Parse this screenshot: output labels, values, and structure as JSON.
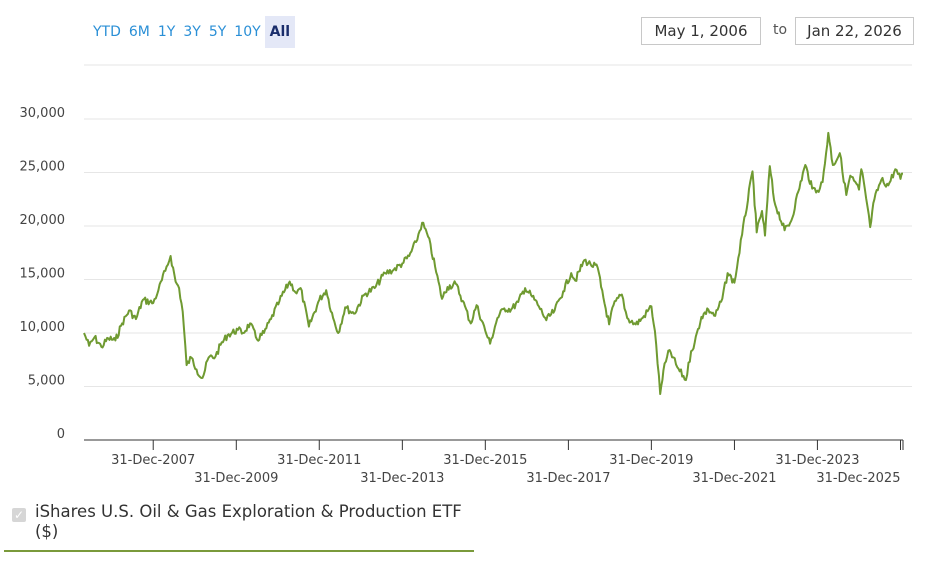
{
  "toolbar": {
    "ranges": [
      "YTD",
      "6M",
      "1Y",
      "3Y",
      "5Y",
      "10Y",
      "All"
    ],
    "active_range": "All",
    "from_date": "May 1, 2006",
    "to_label": "to",
    "to_date": "Jan 22, 2026"
  },
  "legend": {
    "label": "iShares U.S. Oil & Gas Exploration & Production ETF ($)",
    "checked": true
  },
  "colors": {
    "series": "#6f9a31",
    "grid": "#e6e6e6",
    "axis": "#333333",
    "range_text": "#2a8fd6",
    "range_active_bg": "#e4e8f7"
  },
  "chart_data": {
    "type": "line",
    "ylim": [
      0,
      30000
    ],
    "yticks": [
      0,
      5000,
      10000,
      15000,
      20000,
      25000,
      30000
    ],
    "ytick_labels": [
      "0",
      "5,000",
      "10,000",
      "15,000",
      "20,000",
      "25,000",
      "30,000"
    ],
    "xlim": [
      "2006-05-01",
      "2026-01-22"
    ],
    "xtick_labels": [
      "31-Dec-2007",
      "31-Dec-2009",
      "31-Dec-2011",
      "31-Dec-2013",
      "31-Dec-2015",
      "31-Dec-2017",
      "31-Dec-2019",
      "31-Dec-2021",
      "31-Dec-2023",
      "31-Dec-2025"
    ],
    "xtick_dates": [
      "2007-12-31",
      "2009-12-31",
      "2011-12-31",
      "2013-12-31",
      "2015-12-31",
      "2017-12-31",
      "2019-12-31",
      "2021-12-31",
      "2023-12-31",
      "2025-12-31"
    ],
    "series": [
      {
        "name": "iShares U.S. Oil & Gas Exploration & Production ETF ($)",
        "points": [
          [
            "2006-05-01",
            10000
          ],
          [
            "2006-06-15",
            8800
          ],
          [
            "2006-08-01",
            9600
          ],
          [
            "2006-10-01",
            8700
          ],
          [
            "2006-12-01",
            9500
          ],
          [
            "2007-02-01",
            9300
          ],
          [
            "2007-04-01",
            10900
          ],
          [
            "2007-06-01",
            12100
          ],
          [
            "2007-08-01",
            11300
          ],
          [
            "2007-10-01",
            13100
          ],
          [
            "2007-12-31",
            12800
          ],
          [
            "2008-02-15",
            14000
          ],
          [
            "2008-04-15",
            15800
          ],
          [
            "2008-06-01",
            17200
          ],
          [
            "2008-07-15",
            14800
          ],
          [
            "2008-08-15",
            14200
          ],
          [
            "2008-09-15",
            12000
          ],
          [
            "2008-10-20",
            7000
          ],
          [
            "2008-12-01",
            7700
          ],
          [
            "2009-01-15",
            6600
          ],
          [
            "2009-03-09",
            5800
          ],
          [
            "2009-05-01",
            7700
          ],
          [
            "2009-07-01",
            7800
          ],
          [
            "2009-08-15",
            8900
          ],
          [
            "2009-10-15",
            9800
          ],
          [
            "2010-01-15",
            10300
          ],
          [
            "2010-03-01",
            10000
          ],
          [
            "2010-05-01",
            10900
          ],
          [
            "2010-07-01",
            9400
          ],
          [
            "2010-09-01",
            10000
          ],
          [
            "2010-11-01",
            11300
          ],
          [
            "2011-01-15",
            13000
          ],
          [
            "2011-04-15",
            14800
          ],
          [
            "2011-06-15",
            13700
          ],
          [
            "2011-07-20",
            14200
          ],
          [
            "2011-10-01",
            10600
          ],
          [
            "2011-12-31",
            13100
          ],
          [
            "2012-03-01",
            14000
          ],
          [
            "2012-05-01",
            11400
          ],
          [
            "2012-06-15",
            10000
          ],
          [
            "2012-08-15",
            12400
          ],
          [
            "2012-11-01",
            11800
          ],
          [
            "2013-02-01",
            13600
          ],
          [
            "2013-05-01",
            14200
          ],
          [
            "2013-08-01",
            15600
          ],
          [
            "2013-10-15",
            15900
          ],
          [
            "2013-12-31",
            16500
          ],
          [
            "2014-03-01",
            17200
          ],
          [
            "2014-05-01",
            18500
          ],
          [
            "2014-06-23",
            20300
          ],
          [
            "2014-08-15",
            19000
          ],
          [
            "2014-10-15",
            16200
          ],
          [
            "2014-12-15",
            13200
          ],
          [
            "2015-02-01",
            14300
          ],
          [
            "2015-04-15",
            14600
          ],
          [
            "2015-06-15",
            13000
          ],
          [
            "2015-08-25",
            10900
          ],
          [
            "2015-10-15",
            12600
          ],
          [
            "2015-12-31",
            10200
          ],
          [
            "2016-02-11",
            9000
          ],
          [
            "2016-04-15",
            11400
          ],
          [
            "2016-06-15",
            12300
          ],
          [
            "2016-08-15",
            12200
          ],
          [
            "2016-10-15",
            12900
          ],
          [
            "2016-12-15",
            14200
          ],
          [
            "2017-02-15",
            13400
          ],
          [
            "2017-04-15",
            12500
          ],
          [
            "2017-06-20",
            11200
          ],
          [
            "2017-09-01",
            12100
          ],
          [
            "2017-11-15",
            13900
          ],
          [
            "2018-01-25",
            15600
          ],
          [
            "2018-03-01",
            14900
          ],
          [
            "2018-05-20",
            16800
          ],
          [
            "2018-07-15",
            16400
          ],
          [
            "2018-09-15",
            16100
          ],
          [
            "2018-10-15",
            14300
          ],
          [
            "2018-12-24",
            10800
          ],
          [
            "2019-02-01",
            12600
          ],
          [
            "2019-04-15",
            13600
          ],
          [
            "2019-06-01",
            11400
          ],
          [
            "2019-08-15",
            10800
          ],
          [
            "2019-10-15",
            11400
          ],
          [
            "2019-12-31",
            12500
          ],
          [
            "2020-01-31",
            10200
          ],
          [
            "2020-03-18",
            4300
          ],
          [
            "2020-04-15",
            6500
          ],
          [
            "2020-06-08",
            8400
          ],
          [
            "2020-08-15",
            6800
          ],
          [
            "2020-10-30",
            5600
          ],
          [
            "2020-12-15",
            8300
          ],
          [
            "2021-01-15",
            9100
          ],
          [
            "2021-03-15",
            11500
          ],
          [
            "2021-05-15",
            12200
          ],
          [
            "2021-07-15",
            11600
          ],
          [
            "2021-09-15",
            13200
          ],
          [
            "2021-11-01",
            15600
          ],
          [
            "2021-12-31",
            14700
          ],
          [
            "2022-03-08",
            19200
          ],
          [
            "2022-06-08",
            25100
          ],
          [
            "2022-07-15",
            19400
          ],
          [
            "2022-08-30",
            21400
          ],
          [
            "2022-09-26",
            19100
          ],
          [
            "2022-11-07",
            25600
          ],
          [
            "2022-12-15",
            22400
          ],
          [
            "2023-03-17",
            19600
          ],
          [
            "2023-05-15",
            20500
          ],
          [
            "2023-07-15",
            23200
          ],
          [
            "2023-09-15",
            25700
          ],
          [
            "2023-11-15",
            23500
          ],
          [
            "2023-12-31",
            23300
          ],
          [
            "2024-02-15",
            24100
          ],
          [
            "2024-04-05",
            28700
          ],
          [
            "2024-05-15",
            25700
          ],
          [
            "2024-07-15",
            26800
          ],
          [
            "2024-09-10",
            22900
          ],
          [
            "2024-10-15",
            24700
          ],
          [
            "2024-12-31",
            23400
          ],
          [
            "2025-01-20",
            25300
          ],
          [
            "2025-02-20",
            23500
          ],
          [
            "2025-04-08",
            19900
          ],
          [
            "2025-05-15",
            22500
          ],
          [
            "2025-07-15",
            24300
          ],
          [
            "2025-09-15",
            23800
          ],
          [
            "2025-11-15",
            25300
          ],
          [
            "2025-12-31",
            24400
          ],
          [
            "2026-01-22",
            24900
          ]
        ]
      }
    ],
    "grid": true,
    "legend_position": "bottom-left"
  }
}
